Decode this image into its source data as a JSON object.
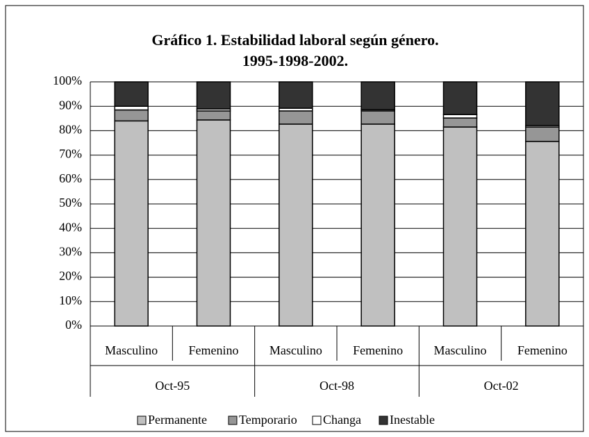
{
  "chart_data": {
    "type": "stacked_bar",
    "title": [
      "Gráfico 1. Estabilidad laboral según género.",
      "1995-1998-2002."
    ],
    "categories": [
      "Masculino",
      "Femenino",
      "Masculino",
      "Femenino",
      "Masculino",
      "Femenino"
    ],
    "groups": [
      "Oct-95",
      "Oct-98",
      "Oct-02"
    ],
    "series": [
      {
        "name": "Permanente",
        "color": "#c0c0c0",
        "values": [
          84,
          84.4,
          82.7,
          82.7,
          81.5,
          75.6
        ]
      },
      {
        "name": "Temporario",
        "color": "#969696",
        "values": [
          4.5,
          3.7,
          5.4,
          5.4,
          3.7,
          5.9
        ]
      },
      {
        "name": "Changa",
        "color": "#ffffff",
        "values": [
          1.5,
          0.8,
          1.1,
          0.5,
          1.4,
          0.6
        ]
      },
      {
        "name": "Inestable",
        "color": "#333333",
        "values": [
          10,
          11.1,
          10.8,
          11.4,
          13.4,
          17.9
        ]
      }
    ],
    "ylim": [
      0,
      100
    ],
    "yticks": [
      {
        "value": 0,
        "label": "0%"
      },
      {
        "value": 10,
        "label": "10%"
      },
      {
        "value": 20,
        "label": "20%"
      },
      {
        "value": 30,
        "label": "30%"
      },
      {
        "value": 40,
        "label": "40%"
      },
      {
        "value": 50,
        "label": "50%"
      },
      {
        "value": 60,
        "label": "60%"
      },
      {
        "value": 70,
        "label": "70%"
      },
      {
        "value": 80,
        "label": "80%"
      },
      {
        "value": 90,
        "label": "90%"
      },
      {
        "value": 100,
        "label": "100%"
      }
    ],
    "grid": true,
    "legend": "bottom"
  }
}
